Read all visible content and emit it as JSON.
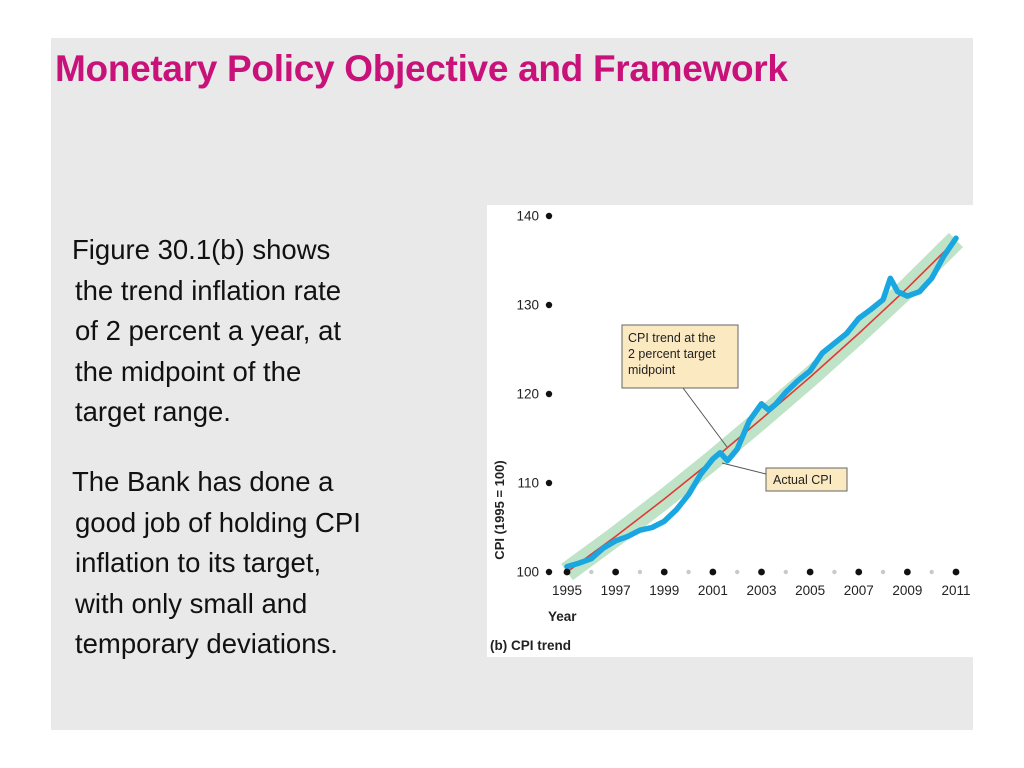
{
  "slide": {
    "title": "Monetary Policy Objective and Framework",
    "title_color": "#c8127a",
    "background": "#e9e9e9"
  },
  "paragraphs": [
    {
      "lines": [
        "Figure 30.1(b) shows",
        "the trend inflation rate",
        "of 2 percent a year, at",
        "the midpoint of the",
        "target range."
      ]
    },
    {
      "lines": [
        "The Bank has done a",
        "good job of holding CPI",
        "inflation to its target,",
        "with only small and",
        "temporary deviations."
      ]
    }
  ],
  "chart_data": {
    "type": "line",
    "panel_label": "(b) CPI trend",
    "xlabel": "Year",
    "ylabel": "CPI (1995 = 100)",
    "xlim": [
      1995,
      2011
    ],
    "ylim": [
      100,
      140
    ],
    "x_ticks": [
      1995,
      1997,
      1999,
      2001,
      2003,
      2005,
      2007,
      2009,
      2011
    ],
    "y_ticks": [
      100,
      110,
      120,
      130,
      140
    ],
    "colors": {
      "actual": "#1aa6e0",
      "trend": "#e03a36",
      "band": "#bfe3c6",
      "callout_fill": "#fbe9c2"
    },
    "series": [
      {
        "name": "Actual CPI",
        "x": [
          1995.0,
          1995.5,
          1996.0,
          1996.5,
          1997.0,
          1997.5,
          1998.0,
          1998.5,
          1999.0,
          1999.5,
          2000.0,
          2000.5,
          2001.0,
          2001.3,
          2001.6,
          2002.0,
          2002.5,
          2003.0,
          2003.3,
          2003.6,
          2004.0,
          2004.5,
          2005.0,
          2005.5,
          2006.0,
          2006.5,
          2007.0,
          2007.5,
          2008.0,
          2008.3,
          2008.6,
          2009.0,
          2009.5,
          2010.0,
          2010.5,
          2011.0
        ],
        "y": [
          100.6,
          101.0,
          101.5,
          102.7,
          103.5,
          104.0,
          104.7,
          105.0,
          105.7,
          107.0,
          108.7,
          111.0,
          112.7,
          113.4,
          112.5,
          113.8,
          117.0,
          118.9,
          118.2,
          118.9,
          120.2,
          121.5,
          122.6,
          124.6,
          125.7,
          126.8,
          128.5,
          129.5,
          130.6,
          133.0,
          131.5,
          131.0,
          131.5,
          133.0,
          135.5,
          137.5
        ]
      },
      {
        "name": "CPI trend at the 2 percent target midpoint",
        "x": [
          1995,
          1997,
          1999,
          2001,
          2003,
          2005,
          2007,
          2009,
          2011
        ],
        "y": [
          100.0,
          104.0,
          108.2,
          112.6,
          117.2,
          121.9,
          126.8,
          131.9,
          137.3
        ]
      }
    ],
    "annotations": [
      {
        "text_lines": [
          "CPI trend at the",
          "2 percent target",
          "midpoint"
        ],
        "target": "trend"
      },
      {
        "text_lines": [
          "Actual CPI"
        ],
        "target": "actual"
      }
    ]
  }
}
